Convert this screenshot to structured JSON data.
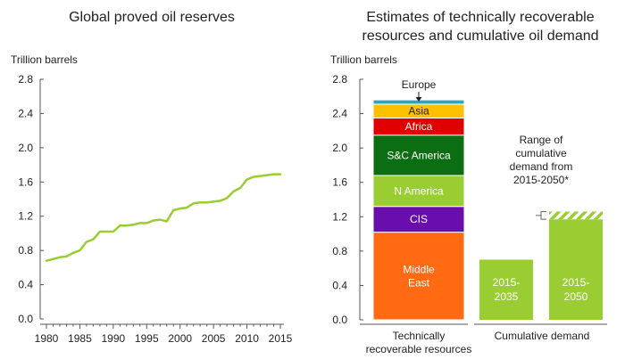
{
  "chart_data": [
    {
      "type": "line",
      "title": "Global proved oil reserves",
      "unit_label": "Trillion barrels",
      "xlim": [
        1980,
        2015
      ],
      "ylim": [
        0,
        2.8
      ],
      "x_ticks": [
        "1980",
        "1985",
        "1990",
        "1995",
        "2000",
        "2005",
        "2010",
        "2015"
      ],
      "y_ticks": [
        "0.0",
        "0.4",
        "0.8",
        "1.2",
        "1.6",
        "2.0",
        "2.4",
        "2.8"
      ],
      "color": "#9acd32",
      "grid": false,
      "x": [
        1980,
        1981,
        1982,
        1983,
        1984,
        1985,
        1986,
        1987,
        1988,
        1989,
        1990,
        1991,
        1992,
        1993,
        1994,
        1995,
        1996,
        1997,
        1998,
        1999,
        2000,
        2001,
        2002,
        2003,
        2004,
        2005,
        2006,
        2007,
        2008,
        2009,
        2010,
        2011,
        2012,
        2013,
        2014,
        2015
      ],
      "values": [
        0.68,
        0.7,
        0.72,
        0.73,
        0.77,
        0.8,
        0.9,
        0.93,
        1.02,
        1.02,
        1.02,
        1.09,
        1.09,
        1.1,
        1.12,
        1.12,
        1.15,
        1.16,
        1.14,
        1.27,
        1.29,
        1.3,
        1.35,
        1.36,
        1.36,
        1.37,
        1.38,
        1.41,
        1.49,
        1.53,
        1.63,
        1.66,
        1.67,
        1.68,
        1.69,
        1.69
      ]
    },
    {
      "type": "bar",
      "title": [
        "Estimates of technically recoverable",
        "resources and cumulative oil demand"
      ],
      "unit_label": "Trillion barrels",
      "ylim": [
        0,
        2.8
      ],
      "y_ticks": [
        "0.0",
        "0.4",
        "0.8",
        "1.2",
        "1.6",
        "2.0",
        "2.4",
        "2.8"
      ],
      "categories": [
        [
          "Technically",
          "recoverable resources"
        ],
        [
          "Cumulative demand"
        ]
      ],
      "stack": [
        {
          "name": "Middle East",
          "lines": [
            "Middle",
            "East"
          ],
          "value": 1.02,
          "color": "#ff6a13",
          "text_color": "#ffffff"
        },
        {
          "name": "CIS",
          "lines": [
            "CIS"
          ],
          "value": 0.3,
          "color": "#6a0dad",
          "text_color": "#ffffff"
        },
        {
          "name": "N America",
          "lines": [
            "N America"
          ],
          "value": 0.36,
          "color": "#9acd32",
          "text_color": "#ffffff"
        },
        {
          "name": "S&C America",
          "lines": [
            "S&C America"
          ],
          "value": 0.47,
          "color": "#0b6e12",
          "text_color": "#ffffff"
        },
        {
          "name": "Africa",
          "lines": [
            "Africa"
          ],
          "value": 0.2,
          "color": "#e00000",
          "text_color": "#ffffff"
        },
        {
          "name": "Asia",
          "lines": [
            "Asia"
          ],
          "value": 0.16,
          "color": "#ffc000",
          "text_color": "#222222"
        },
        {
          "name": "Europe",
          "lines": [],
          "value": 0.05,
          "color": "#2aa8c0",
          "text_color": "#222222"
        }
      ],
      "europe_annotation": "Europe",
      "demand": [
        {
          "label": [
            "2015-",
            "2035"
          ],
          "value": 0.7,
          "color": "#9acd32"
        },
        {
          "label": [
            "2015-",
            "2050"
          ],
          "value": 1.17,
          "range_max": 1.26,
          "color": "#9acd32"
        }
      ],
      "range_annotation": [
        "Range of",
        "cumulative",
        "demand from",
        "2015-2050*"
      ],
      "grid": false
    }
  ]
}
